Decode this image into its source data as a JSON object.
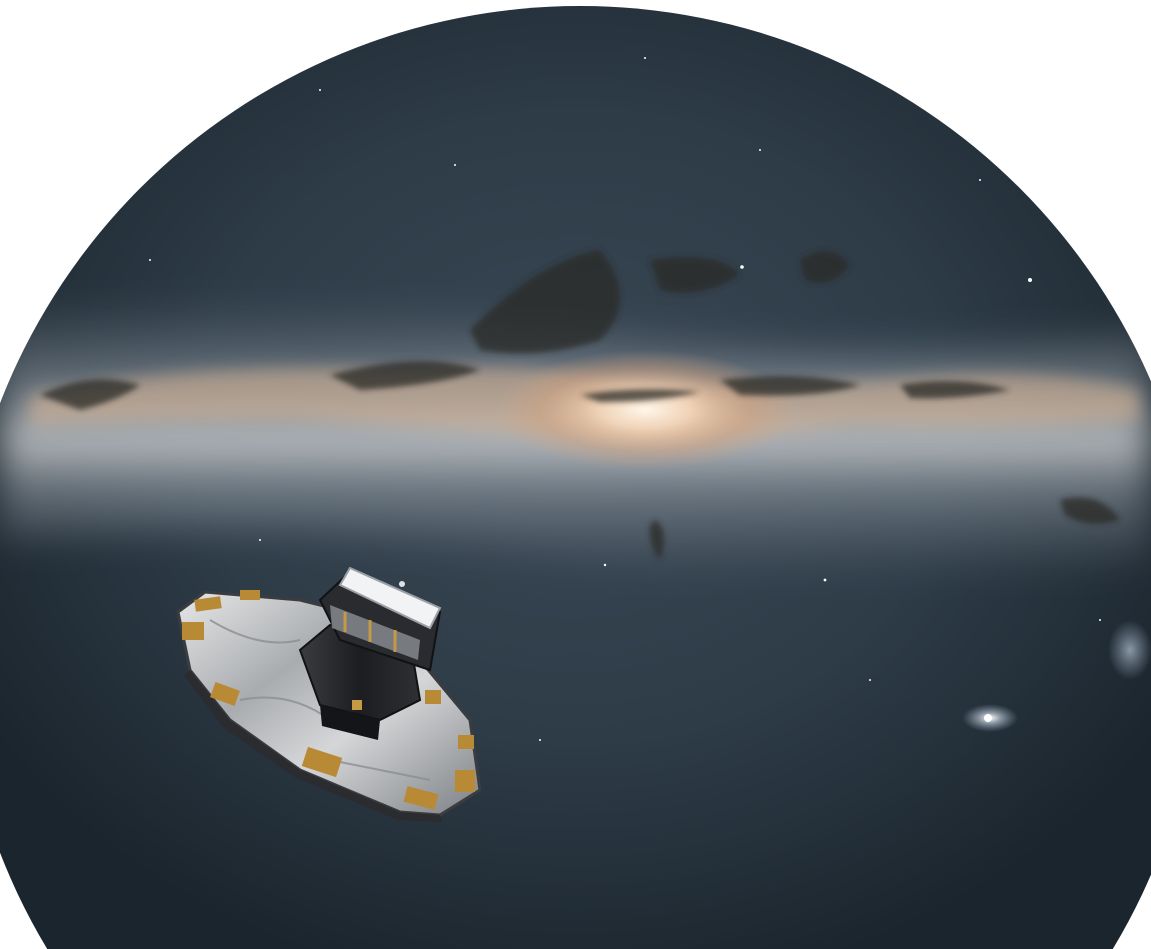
{
  "scene": {
    "subject": "spacecraft",
    "background": "milky-way-sky",
    "colors": {
      "page": "#ffffff",
      "sky_dark": "#1b252d",
      "sky_mid": "#2e3c48",
      "haze": "#8d98a3",
      "galactic_core": "#f3d6ba",
      "dust_lane": "#2b2a26",
      "shield_silver": "#c7c9cb",
      "gold_foil": "#b98a36",
      "body_dark": "#1c1d20"
    }
  }
}
